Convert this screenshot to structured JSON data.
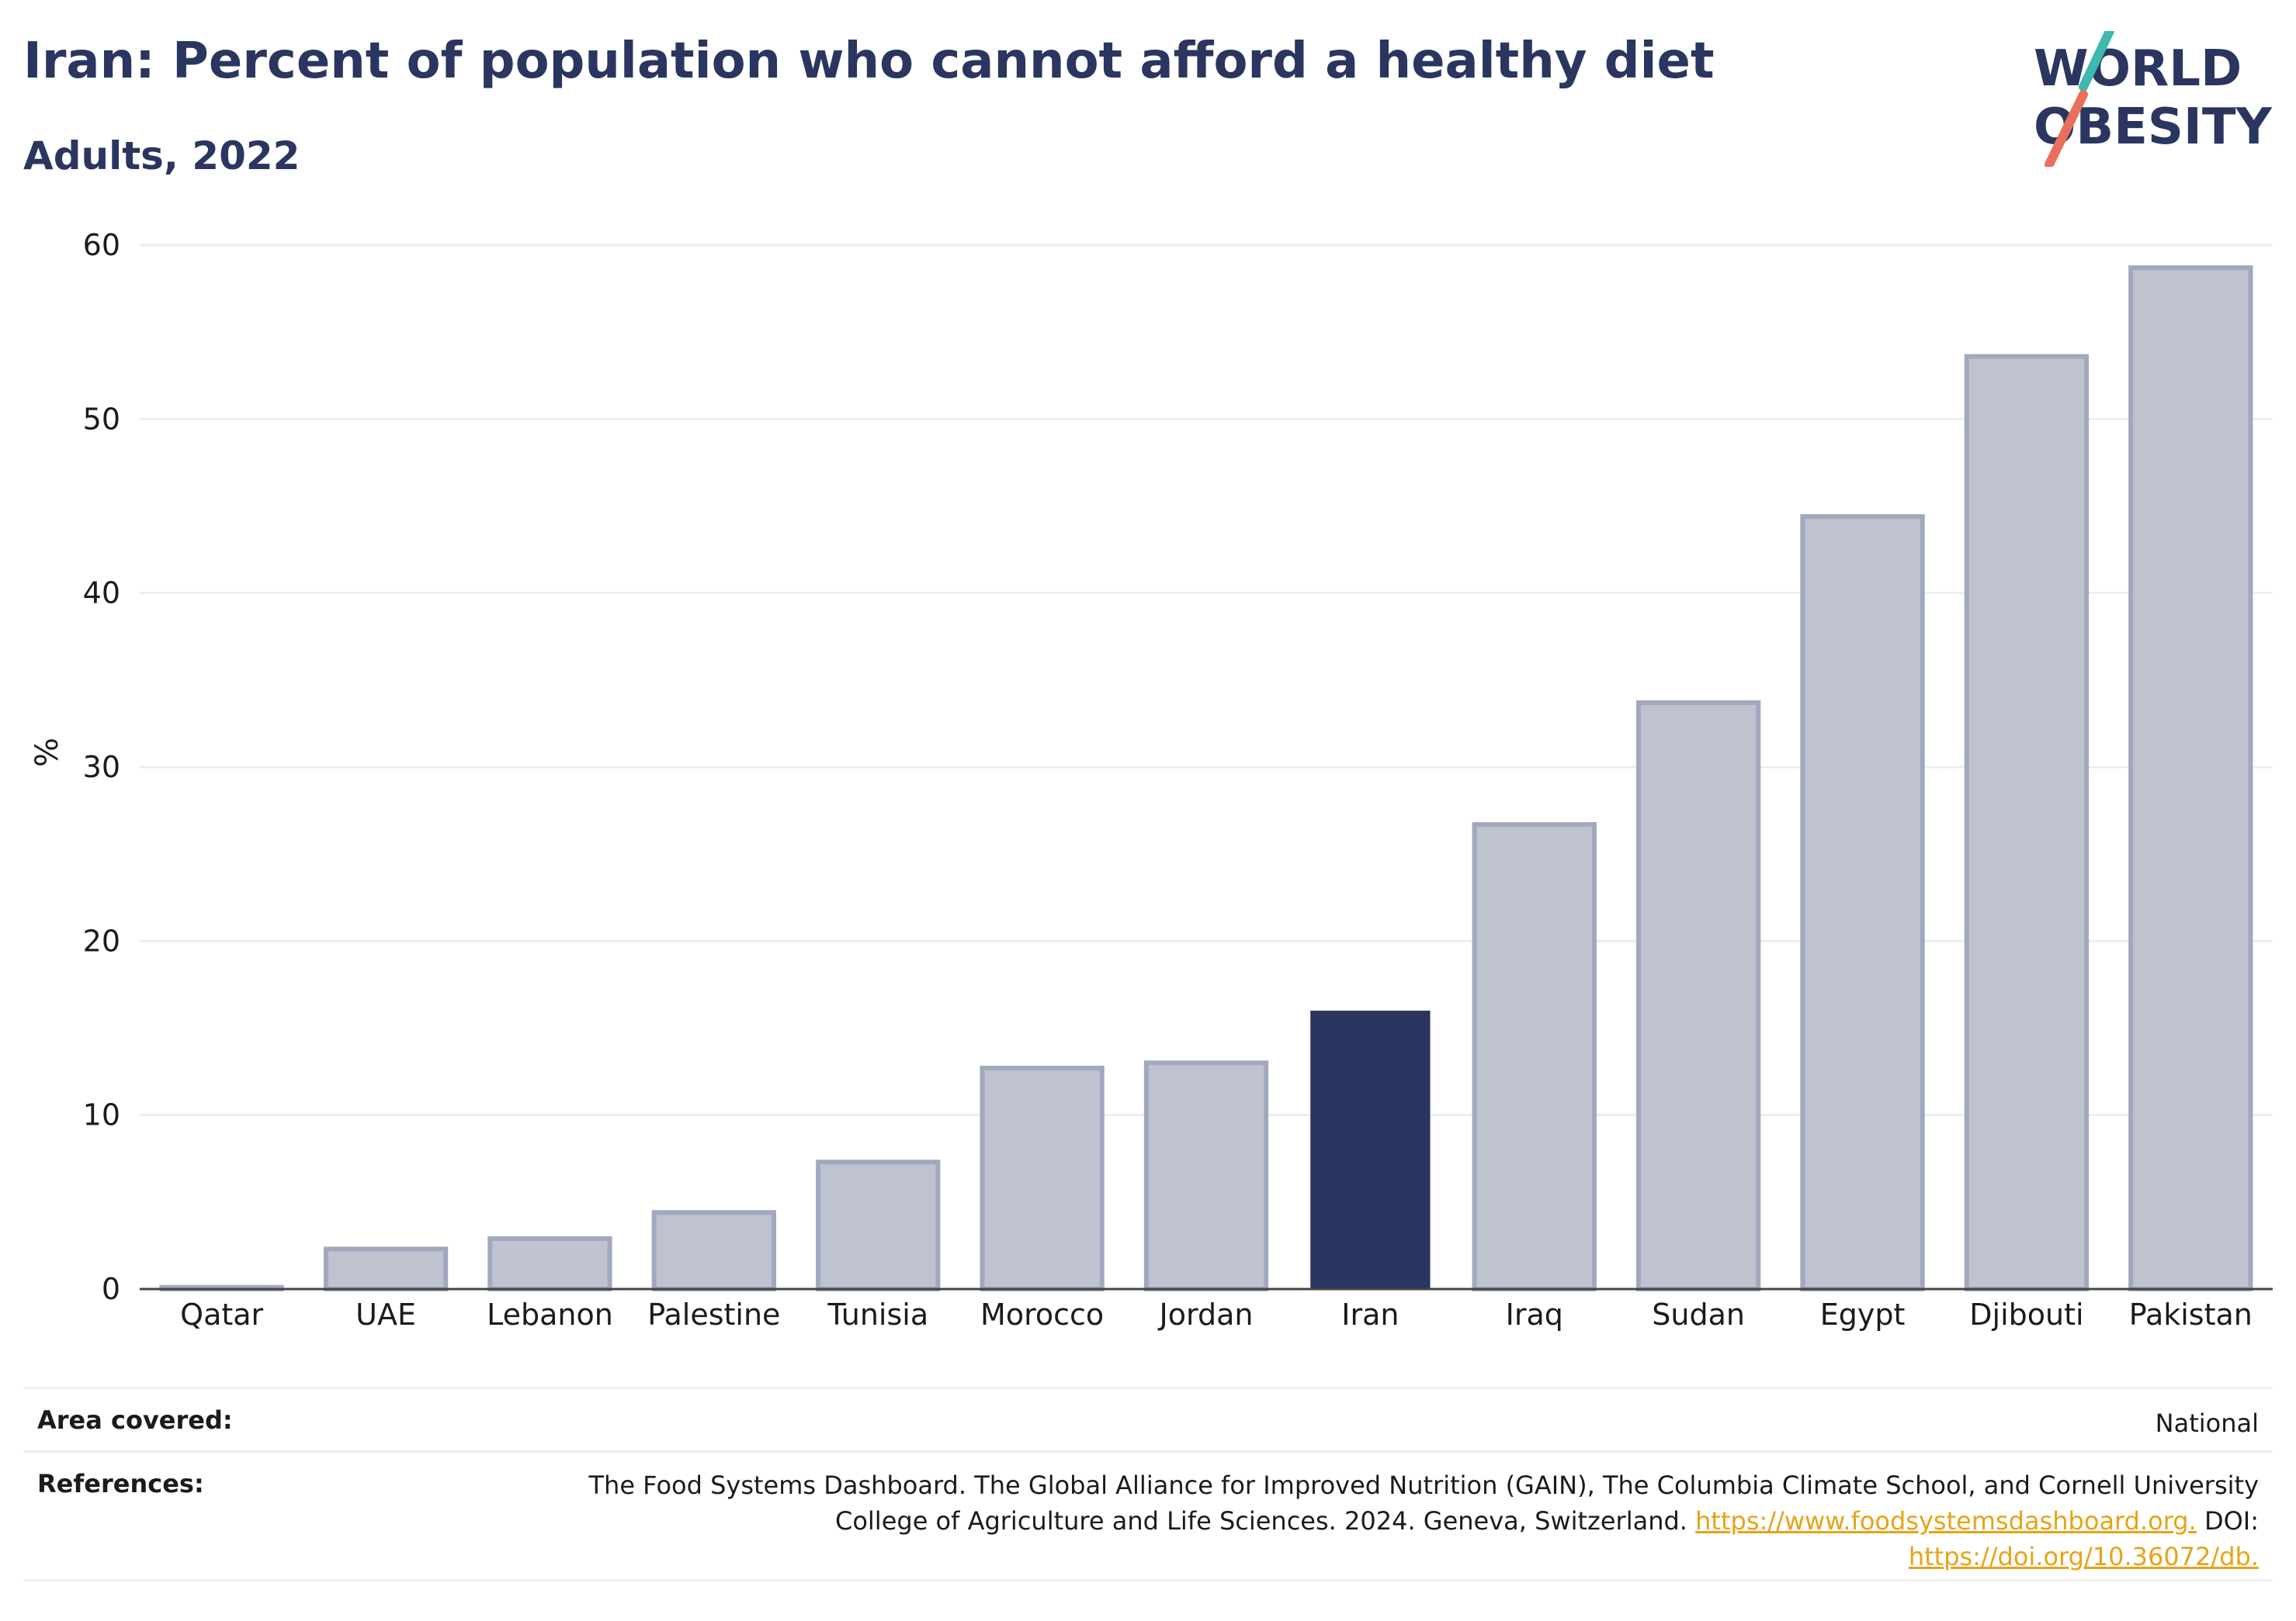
{
  "header": {
    "title": "Iran: Percent of population who cannot afford a healthy diet",
    "subtitle": "Adults, 2022",
    "logo_text_line1": "WORLD",
    "logo_text_line2": "OBESITY"
  },
  "colors": {
    "highlight": "#2a365f",
    "bar_fill": "#bfc2cf",
    "bar_edge": "#a2a8bd",
    "grid": "#eceef3",
    "logo_teal": "#3fb8b0",
    "logo_coral": "#e8705a",
    "link": "#e8a317"
  },
  "chart_data": {
    "type": "bar",
    "categories": [
      "Qatar",
      "UAE",
      "Lebanon",
      "Palestine",
      "Tunisia",
      "Morocco",
      "Jordan",
      "Iran",
      "Iraq",
      "Sudan",
      "Egypt",
      "Djibouti",
      "Pakistan"
    ],
    "values": [
      0.1,
      2.3,
      2.9,
      4.4,
      7.3,
      12.7,
      13.0,
      16.0,
      26.7,
      33.7,
      44.4,
      53.6,
      58.7
    ],
    "highlight": "Iran",
    "title": "Iran: Percent of population who cannot afford a healthy diet",
    "subtitle": "Adults, 2022",
    "xlabel": "",
    "ylabel": "%",
    "ylim": [
      0,
      60
    ],
    "yticks": [
      0,
      10,
      20,
      30,
      40,
      50,
      60
    ],
    "grid": true,
    "legend": "none"
  },
  "footer": {
    "area_label": "Area covered:",
    "area_value": "National",
    "references_label": "References:",
    "references_line1": "The Food Systems Dashboard. The Global Alliance for Improved Nutrition (GAIN), The Columbia Climate School, and Cornell University",
    "references_line2_text": "College of Agriculture and Life Sciences. 2024. Geneva, Switzerland.",
    "references_link1": "https://www.foodsystemsdashboard.org.",
    "references_doi_label": "DOI:",
    "references_link2": "https://doi.org/10.36072/db."
  }
}
